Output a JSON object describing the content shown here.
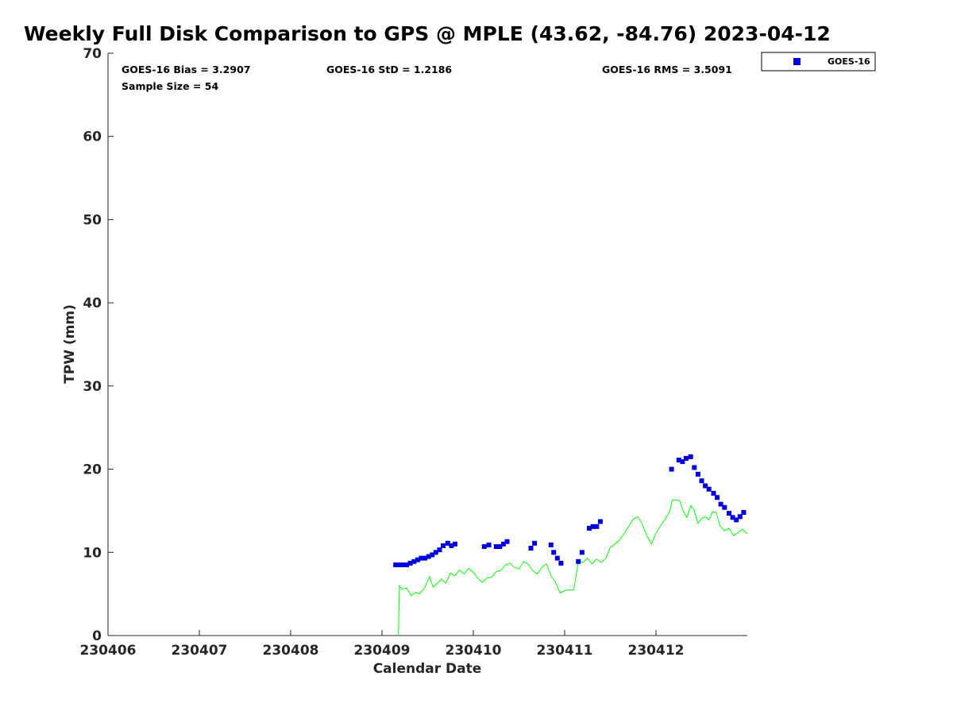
{
  "chart_data": {
    "type": "scatter",
    "title": "Weekly Full Disk Comparison to GPS @ MPLE (43.62, -84.76) 2023-04-12",
    "xlabel": "Calendar Date",
    "ylabel": "TPW (mm)",
    "xlim": [
      230406,
      230413
    ],
    "ylim": [
      0,
      70
    ],
    "x_ticks": [
      "230406",
      "230407",
      "230408",
      "230409",
      "230410",
      "230411",
      "230412"
    ],
    "y_ticks": [
      "0",
      "10",
      "20",
      "30",
      "40",
      "50",
      "60",
      "70"
    ],
    "x_tick_values": [
      230406,
      230407,
      230408,
      230409,
      230410,
      230411,
      230412
    ],
    "y_tick_values": [
      0,
      10,
      20,
      30,
      40,
      50,
      60,
      70
    ],
    "grid": false,
    "legend": {
      "position": "outside-top-right",
      "entries": [
        "GOES-16"
      ]
    },
    "annotations": {
      "bias": "GOES-16 Bias = 3.2907",
      "std": "GOES-16 StD = 1.2186",
      "rms": "GOES-16 RMS = 3.5091",
      "sample_size": "Sample Size = 54"
    },
    "series": [
      {
        "name": "GOES-16",
        "kind": "scatter",
        "color": "#0000dd",
        "marker": "square",
        "points": [
          [
            230409.15,
            8.5
          ],
          [
            230409.2,
            8.5
          ],
          [
            230409.235,
            8.5
          ],
          [
            230409.27,
            8.5
          ],
          [
            230409.31,
            8.7
          ],
          [
            230409.35,
            8.9
          ],
          [
            230409.39,
            9.1
          ],
          [
            230409.43,
            9.3
          ],
          [
            230409.47,
            9.3
          ],
          [
            230409.51,
            9.5
          ],
          [
            230409.55,
            9.7
          ],
          [
            230409.59,
            10.0
          ],
          [
            230409.63,
            10.3
          ],
          [
            230409.67,
            10.8
          ],
          [
            230409.72,
            11.1
          ],
          [
            230409.76,
            10.8
          ],
          [
            230409.8,
            11.0
          ],
          [
            230410.12,
            10.7
          ],
          [
            230410.17,
            10.9
          ],
          [
            230410.25,
            10.7
          ],
          [
            230410.29,
            10.7
          ],
          [
            230410.33,
            11.0
          ],
          [
            230410.37,
            11.3
          ],
          [
            230410.63,
            10.5
          ],
          [
            230410.67,
            11.1
          ],
          [
            230410.85,
            10.9
          ],
          [
            230410.88,
            10.0
          ],
          [
            230410.92,
            9.3
          ],
          [
            230410.96,
            8.7
          ],
          [
            230411.15,
            8.9
          ],
          [
            230411.19,
            10.0
          ],
          [
            230411.27,
            12.9
          ],
          [
            230411.31,
            13.1
          ],
          [
            230411.35,
            13.1
          ],
          [
            230411.39,
            13.7
          ],
          [
            230412.17,
            20.0
          ],
          [
            230412.25,
            21.1
          ],
          [
            230412.29,
            20.9
          ],
          [
            230412.33,
            21.3
          ],
          [
            230412.38,
            21.5
          ],
          [
            230412.42,
            20.2
          ],
          [
            230412.46,
            19.4
          ],
          [
            230412.5,
            18.6
          ],
          [
            230412.54,
            18.0
          ],
          [
            230412.58,
            17.6
          ],
          [
            230412.63,
            17.1
          ],
          [
            230412.67,
            16.6
          ],
          [
            230412.71,
            15.8
          ],
          [
            230412.75,
            15.4
          ],
          [
            230412.8,
            14.7
          ],
          [
            230412.84,
            14.2
          ],
          [
            230412.88,
            13.9
          ],
          [
            230412.92,
            14.3
          ],
          [
            230412.96,
            14.8
          ]
        ]
      },
      {
        "name": "GPS",
        "kind": "line",
        "color": "#00ff00",
        "points": [
          [
            230409.18,
            0
          ],
          [
            230409.19,
            6.0
          ],
          [
            230409.22,
            5.6
          ],
          [
            230409.27,
            5.7
          ],
          [
            230409.32,
            4.8
          ],
          [
            230409.37,
            5.2
          ],
          [
            230409.41,
            5.0
          ],
          [
            230409.47,
            5.8
          ],
          [
            230409.52,
            7.1
          ],
          [
            230409.56,
            5.8
          ],
          [
            230409.6,
            6.2
          ],
          [
            230409.65,
            6.8
          ],
          [
            230409.7,
            6.3
          ],
          [
            230409.75,
            7.5
          ],
          [
            230409.8,
            7.2
          ],
          [
            230409.85,
            7.9
          ],
          [
            230409.9,
            7.4
          ],
          [
            230409.95,
            8.1
          ],
          [
            230410.0,
            7.6
          ],
          [
            230410.05,
            6.9
          ],
          [
            230410.1,
            6.4
          ],
          [
            230410.15,
            6.9
          ],
          [
            230410.2,
            7.0
          ],
          [
            230410.25,
            7.7
          ],
          [
            230410.3,
            7.8
          ],
          [
            230410.35,
            8.5
          ],
          [
            230410.4,
            8.7
          ],
          [
            230410.45,
            8.2
          ],
          [
            230410.5,
            8.0
          ],
          [
            230410.55,
            8.9
          ],
          [
            230410.6,
            8.6
          ],
          [
            230410.65,
            7.8
          ],
          [
            230410.7,
            7.4
          ],
          [
            230410.75,
            8.2
          ],
          [
            230410.8,
            8.6
          ],
          [
            230410.85,
            7.2
          ],
          [
            230410.9,
            6.4
          ],
          [
            230410.95,
            5.1
          ],
          [
            230411.0,
            5.4
          ],
          [
            230411.05,
            5.5
          ],
          [
            230411.1,
            5.5
          ],
          [
            230411.15,
            8.9
          ],
          [
            230411.2,
            8.8
          ],
          [
            230411.25,
            9.3
          ],
          [
            230411.3,
            8.6
          ],
          [
            230411.35,
            9.2
          ],
          [
            230411.4,
            8.8
          ],
          [
            230411.45,
            9.3
          ],
          [
            230411.5,
            10.6
          ],
          [
            230411.55,
            11.0
          ],
          [
            230411.6,
            11.5
          ],
          [
            230411.65,
            12.2
          ],
          [
            230411.7,
            13.1
          ],
          [
            230411.75,
            14.0
          ],
          [
            230411.8,
            14.3
          ],
          [
            230411.85,
            13.4
          ],
          [
            230411.9,
            12.0
          ],
          [
            230411.95,
            11.0
          ],
          [
            230412.0,
            12.3
          ],
          [
            230412.05,
            13.2
          ],
          [
            230412.1,
            14.0
          ],
          [
            230412.15,
            14.9
          ],
          [
            230412.18,
            16.3
          ],
          [
            230412.22,
            16.3
          ],
          [
            230412.26,
            16.2
          ],
          [
            230412.3,
            14.9
          ],
          [
            230412.34,
            14.2
          ],
          [
            230412.38,
            15.6
          ],
          [
            230412.42,
            15.0
          ],
          [
            230412.46,
            13.5
          ],
          [
            230412.5,
            14.1
          ],
          [
            230412.54,
            14.3
          ],
          [
            230412.58,
            13.9
          ],
          [
            230412.62,
            14.9
          ],
          [
            230412.66,
            14.8
          ],
          [
            230412.7,
            13.2
          ],
          [
            230412.75,
            12.6
          ],
          [
            230412.8,
            12.9
          ],
          [
            230412.85,
            12.0
          ],
          [
            230412.9,
            12.4
          ],
          [
            230412.95,
            12.8
          ],
          [
            230413.0,
            12.2
          ]
        ]
      }
    ]
  }
}
